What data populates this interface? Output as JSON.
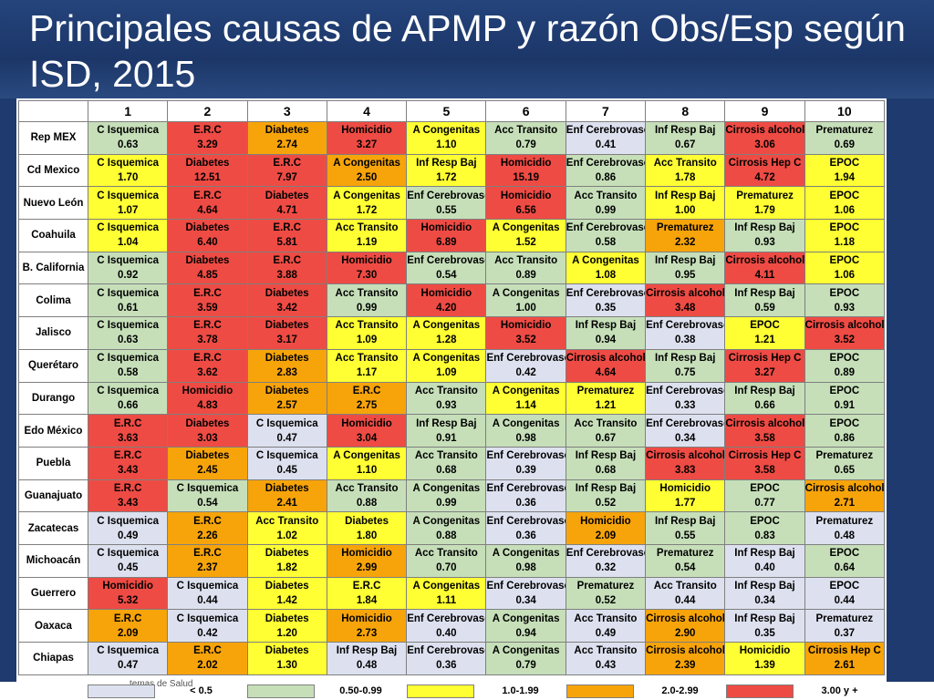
{
  "title": "Principales causas de APMP y razón Obs/Esp según ISD, 2015",
  "columns": [
    "1",
    "2",
    "3",
    "4",
    "5",
    "6",
    "7",
    "8",
    "9",
    "10"
  ],
  "colors": {
    "lav": "#dde1ef",
    "grn": "#c6dfb9",
    "yel": "#ffff33",
    "org": "#f7a40a",
    "red": "#ee4b44"
  },
  "rows": [
    {
      "state": "Rep MEX",
      "cells": [
        [
          "C Isquemica",
          "0.63",
          "grn"
        ],
        [
          "E.R.C",
          "3.29",
          "red"
        ],
        [
          "Diabetes",
          "2.74",
          "org"
        ],
        [
          "Homicidio",
          "3.27",
          "red"
        ],
        [
          "A Congenitas",
          "1.10",
          "yel"
        ],
        [
          "Acc Transito",
          "0.79",
          "grn"
        ],
        [
          "Enf Cerebrovasc",
          "0.41",
          "lav"
        ],
        [
          "Inf Resp Baj",
          "0.67",
          "grn"
        ],
        [
          "Cirrosis alcohol",
          "3.06",
          "red"
        ],
        [
          "Prematurez",
          "0.69",
          "grn"
        ]
      ]
    },
    {
      "state": "Cd Mexico",
      "cells": [
        [
          "C Isquemica",
          "1.70",
          "yel"
        ],
        [
          "Diabetes",
          "12.51",
          "red"
        ],
        [
          "E.R.C",
          "7.97",
          "red"
        ],
        [
          "A Congenitas",
          "2.50",
          "org"
        ],
        [
          "Inf Resp Baj",
          "1.72",
          "yel"
        ],
        [
          "Homicidio",
          "15.19",
          "red"
        ],
        [
          "Enf Cerebrovasc",
          "0.86",
          "grn"
        ],
        [
          "Acc Transito",
          "1.78",
          "yel"
        ],
        [
          "Cirrosis Hep C",
          "4.72",
          "red"
        ],
        [
          "EPOC",
          "1.94",
          "yel"
        ]
      ]
    },
    {
      "state": "Nuevo León",
      "cells": [
        [
          "C Isquemica",
          "1.07",
          "yel"
        ],
        [
          "E.R.C",
          "4.64",
          "red"
        ],
        [
          "Diabetes",
          "4.71",
          "red"
        ],
        [
          "A Congenitas",
          "1.72",
          "yel"
        ],
        [
          "Enf Cerebrovasc",
          "0.55",
          "grn"
        ],
        [
          "Homicidio",
          "6.56",
          "red"
        ],
        [
          "Acc Transito",
          "0.99",
          "grn"
        ],
        [
          "Inf Resp Baj",
          "1.00",
          "yel"
        ],
        [
          "Prematurez",
          "1.79",
          "yel"
        ],
        [
          "EPOC",
          "1.06",
          "yel"
        ]
      ]
    },
    {
      "state": "Coahuila",
      "cells": [
        [
          "C Isquemica",
          "1.04",
          "yel"
        ],
        [
          "Diabetes",
          "6.40",
          "red"
        ],
        [
          "E.R.C",
          "5.81",
          "red"
        ],
        [
          "Acc Transito",
          "1.19",
          "yel"
        ],
        [
          "Homicidio",
          "6.89",
          "red"
        ],
        [
          "A Congenitas",
          "1.52",
          "yel"
        ],
        [
          "Enf Cerebrovasc",
          "0.58",
          "grn"
        ],
        [
          "Prematurez",
          "2.32",
          "org"
        ],
        [
          "Inf Resp Baj",
          "0.93",
          "grn"
        ],
        [
          "EPOC",
          "1.18",
          "yel"
        ]
      ]
    },
    {
      "state": "B. California",
      "cells": [
        [
          "C Isquemica",
          "0.92",
          "grn"
        ],
        [
          "Diabetes",
          "4.85",
          "red"
        ],
        [
          "E.R.C",
          "3.88",
          "red"
        ],
        [
          "Homicidio",
          "7.30",
          "red"
        ],
        [
          "Enf Cerebrovasc",
          "0.54",
          "grn"
        ],
        [
          "Acc Transito",
          "0.89",
          "grn"
        ],
        [
          "A Congenitas",
          "1.08",
          "yel"
        ],
        [
          "Inf Resp Baj",
          "0.95",
          "grn"
        ],
        [
          "Cirrosis alcohol",
          "4.11",
          "red"
        ],
        [
          "EPOC",
          "1.06",
          "yel"
        ]
      ]
    },
    {
      "state": "Colima",
      "cells": [
        [
          "C Isquemica",
          "0.61",
          "grn"
        ],
        [
          "E.R.C",
          "3.59",
          "red"
        ],
        [
          "Diabetes",
          "3.42",
          "red"
        ],
        [
          "Acc Transito",
          "0.99",
          "grn"
        ],
        [
          "Homicidio",
          "4.20",
          "red"
        ],
        [
          "A Congenitas",
          "1.00",
          "grn"
        ],
        [
          "Enf Cerebrovasc",
          "0.35",
          "lav"
        ],
        [
          "Cirrosis alcohol",
          "3.48",
          "red"
        ],
        [
          "Inf Resp Baj",
          "0.59",
          "grn"
        ],
        [
          "EPOC",
          "0.93",
          "grn"
        ]
      ]
    },
    {
      "state": "Jalisco",
      "cells": [
        [
          "C Isquemica",
          "0.63",
          "grn"
        ],
        [
          "E.R.C",
          "3.78",
          "red"
        ],
        [
          "Diabetes",
          "3.17",
          "red"
        ],
        [
          "Acc Transito",
          "1.09",
          "yel"
        ],
        [
          "A Congenitas",
          "1.28",
          "yel"
        ],
        [
          "Homicidio",
          "3.52",
          "red"
        ],
        [
          "Inf Resp Baj",
          "0.94",
          "grn"
        ],
        [
          "Enf Cerebrovasc",
          "0.38",
          "lav"
        ],
        [
          "EPOC",
          "1.21",
          "yel"
        ],
        [
          "Cirrosis alcohol",
          "3.52",
          "red"
        ]
      ]
    },
    {
      "state": "Querétaro",
      "cells": [
        [
          "C Isquemica",
          "0.58",
          "grn"
        ],
        [
          "E.R.C",
          "3.62",
          "red"
        ],
        [
          "Diabetes",
          "2.83",
          "org"
        ],
        [
          "Acc Transito",
          "1.17",
          "yel"
        ],
        [
          "A Congenitas",
          "1.09",
          "yel"
        ],
        [
          "Enf Cerebrovasc",
          "0.42",
          "lav"
        ],
        [
          "Cirrosis alcohol",
          "4.64",
          "red"
        ],
        [
          "Inf Resp Baj",
          "0.75",
          "grn"
        ],
        [
          "Cirrosis Hep C",
          "3.27",
          "red"
        ],
        [
          "EPOC",
          "0.89",
          "grn"
        ]
      ]
    },
    {
      "state": "Durango",
      "cells": [
        [
          "C Isquemica",
          "0.66",
          "grn"
        ],
        [
          "Homicidio",
          "4.83",
          "red"
        ],
        [
          "Diabetes",
          "2.57",
          "org"
        ],
        [
          "E.R.C",
          "2.75",
          "org"
        ],
        [
          "Acc Transito",
          "0.93",
          "grn"
        ],
        [
          "A Congenitas",
          "1.14",
          "yel"
        ],
        [
          "Prematurez",
          "1.21",
          "yel"
        ],
        [
          "Enf Cerebrovasc",
          "0.33",
          "lav"
        ],
        [
          "Inf Resp Baj",
          "0.66",
          "grn"
        ],
        [
          "EPOC",
          "0.91",
          "grn"
        ]
      ]
    },
    {
      "state": "Edo México",
      "cells": [
        [
          "E.R.C",
          "3.63",
          "red"
        ],
        [
          "Diabetes",
          "3.03",
          "red"
        ],
        [
          "C Isquemica",
          "0.47",
          "lav"
        ],
        [
          "Homicidio",
          "3.04",
          "red"
        ],
        [
          "Inf Resp Baj",
          "0.91",
          "grn"
        ],
        [
          "A Congenitas",
          "0.98",
          "grn"
        ],
        [
          "Acc Transito",
          "0.67",
          "grn"
        ],
        [
          "Enf Cerebrovasc",
          "0.34",
          "lav"
        ],
        [
          "Cirrosis alcohol",
          "3.58",
          "red"
        ],
        [
          "EPOC",
          "0.86",
          "grn"
        ]
      ]
    },
    {
      "state": "Puebla",
      "cells": [
        [
          "E.R.C",
          "3.43",
          "red"
        ],
        [
          "Diabetes",
          "2.45",
          "org"
        ],
        [
          "C Isquemica",
          "0.45",
          "lav"
        ],
        [
          "A Congenitas",
          "1.10",
          "yel"
        ],
        [
          "Acc Transito",
          "0.68",
          "grn"
        ],
        [
          "Enf Cerebrovasc",
          "0.39",
          "lav"
        ],
        [
          "Inf Resp Baj",
          "0.68",
          "grn"
        ],
        [
          "Cirrosis alcohol",
          "3.83",
          "red"
        ],
        [
          "Cirrosis Hep C",
          "3.58",
          "red"
        ],
        [
          "Prematurez",
          "0.65",
          "grn"
        ]
      ]
    },
    {
      "state": "Guanajuato",
      "cells": [
        [
          "E.R.C",
          "3.43",
          "red"
        ],
        [
          "C Isquemica",
          "0.54",
          "grn"
        ],
        [
          "Diabetes",
          "2.41",
          "org"
        ],
        [
          "Acc Transito",
          "0.88",
          "grn"
        ],
        [
          "A Congenitas",
          "0.99",
          "grn"
        ],
        [
          "Enf Cerebrovasc",
          "0.36",
          "lav"
        ],
        [
          "Inf Resp Baj",
          "0.52",
          "grn"
        ],
        [
          "Homicidio",
          "1.77",
          "yel"
        ],
        [
          "EPOC",
          "0.77",
          "grn"
        ],
        [
          "Cirrosis alcohol",
          "2.71",
          "org"
        ]
      ]
    },
    {
      "state": "Zacatecas",
      "cells": [
        [
          "C Isquemica",
          "0.49",
          "lav"
        ],
        [
          "E.R.C",
          "2.26",
          "org"
        ],
        [
          "Acc Transito",
          "1.02",
          "yel"
        ],
        [
          "Diabetes",
          "1.80",
          "yel"
        ],
        [
          "A Congenitas",
          "0.88",
          "grn"
        ],
        [
          "Enf Cerebrovasc",
          "0.36",
          "lav"
        ],
        [
          "Homicidio",
          "2.09",
          "org"
        ],
        [
          "Inf Resp Baj",
          "0.55",
          "grn"
        ],
        [
          "EPOC",
          "0.83",
          "grn"
        ],
        [
          "Prematurez",
          "0.48",
          "lav"
        ]
      ]
    },
    {
      "state": "Michoacán",
      "cells": [
        [
          "C Isquemica",
          "0.45",
          "lav"
        ],
        [
          "E.R.C",
          "2.37",
          "org"
        ],
        [
          "Diabetes",
          "1.82",
          "yel"
        ],
        [
          "Homicidio",
          "2.99",
          "org"
        ],
        [
          "Acc Transito",
          "0.70",
          "grn"
        ],
        [
          "A Congenitas",
          "0.98",
          "grn"
        ],
        [
          "Enf Cerebrovasc",
          "0.32",
          "lav"
        ],
        [
          "Prematurez",
          "0.54",
          "grn"
        ],
        [
          "Inf Resp Baj",
          "0.40",
          "lav"
        ],
        [
          "EPOC",
          "0.64",
          "grn"
        ]
      ]
    },
    {
      "state": "Guerrero",
      "cells": [
        [
          "Homicidio",
          "5.32",
          "red"
        ],
        [
          "C Isquemica",
          "0.44",
          "lav"
        ],
        [
          "Diabetes",
          "1.42",
          "yel"
        ],
        [
          "E.R.C",
          "1.84",
          "yel"
        ],
        [
          "A Congenitas",
          "1.11",
          "yel"
        ],
        [
          "Enf Cerebrovasc",
          "0.34",
          "lav"
        ],
        [
          "Prematurez",
          "0.52",
          "grn"
        ],
        [
          "Acc Transito",
          "0.44",
          "lav"
        ],
        [
          "Inf Resp Baj",
          "0.34",
          "lav"
        ],
        [
          "EPOC",
          "0.44",
          "lav"
        ]
      ]
    },
    {
      "state": "Oaxaca",
      "cells": [
        [
          "E.R.C",
          "2.09",
          "org"
        ],
        [
          "C Isquemica",
          "0.42",
          "lav"
        ],
        [
          "Diabetes",
          "1.20",
          "yel"
        ],
        [
          "Homicidio",
          "2.73",
          "org"
        ],
        [
          "Enf Cerebrovasc",
          "0.40",
          "lav"
        ],
        [
          "A Congenitas",
          "0.94",
          "grn"
        ],
        [
          "Acc Transito",
          "0.49",
          "lav"
        ],
        [
          "Cirrosis alcohol",
          "2.90",
          "org"
        ],
        [
          "Inf Resp Baj",
          "0.35",
          "lav"
        ],
        [
          "Prematurez",
          "0.37",
          "lav"
        ]
      ]
    },
    {
      "state": "Chiapas",
      "cells": [
        [
          "C Isquemica",
          "0.47",
          "lav"
        ],
        [
          "E.R.C",
          "2.02",
          "org"
        ],
        [
          "Diabetes",
          "1.30",
          "yel"
        ],
        [
          "Inf Resp Baj",
          "0.48",
          "lav"
        ],
        [
          "Enf Cerebrovasc",
          "0.36",
          "lav"
        ],
        [
          "A Congenitas",
          "0.79",
          "grn"
        ],
        [
          "Acc Transito",
          "0.43",
          "lav"
        ],
        [
          "Cirrosis alcohol",
          "2.39",
          "org"
        ],
        [
          "Homicidio",
          "1.39",
          "yel"
        ],
        [
          "Cirrosis Hep C",
          "2.61",
          "org"
        ]
      ]
    }
  ],
  "legend": [
    {
      "label": "< 0.5",
      "color": "lav"
    },
    {
      "label": "0.50-0.99",
      "color": "grn"
    },
    {
      "label": "1.0-1.99",
      "color": "yel"
    },
    {
      "label": "2.0-2.99",
      "color": "org"
    },
    {
      "label": "3.00 y +",
      "color": "red"
    }
  ],
  "footer_note": "temas de Salud"
}
